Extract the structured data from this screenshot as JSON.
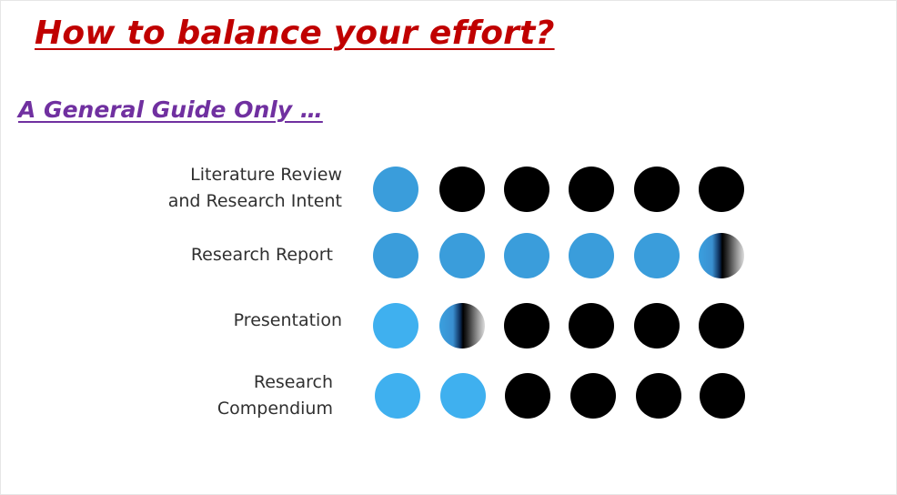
{
  "title": "How to balance your effort?",
  "subtitle": "A General Guide Only …",
  "colors": {
    "title": "#c00000",
    "subtitle": "#7030a0",
    "effort_dot": "#3a9ddb",
    "remaining_dot": "#000000"
  },
  "rows": [
    {
      "label_lines": [
        "Literature Review",
        "and Research Intent"
      ],
      "effort_units": 1,
      "dots": [
        "blue",
        "black",
        "black",
        "black",
        "black",
        "black"
      ]
    },
    {
      "label_lines": [
        "Research Report"
      ],
      "effort_units": 5.5,
      "dots": [
        "blue",
        "blue",
        "blue",
        "blue",
        "blue",
        "partial"
      ]
    },
    {
      "label_lines": [
        "Presentation"
      ],
      "effort_units": 1.5,
      "dots": [
        "light",
        "partial",
        "black",
        "black",
        "black",
        "black"
      ]
    },
    {
      "label_lines": [
        "Research",
        "Compendium"
      ],
      "effort_units": 2,
      "dots": [
        "light",
        "light",
        "black",
        "black",
        "black",
        "black"
      ]
    }
  ]
}
